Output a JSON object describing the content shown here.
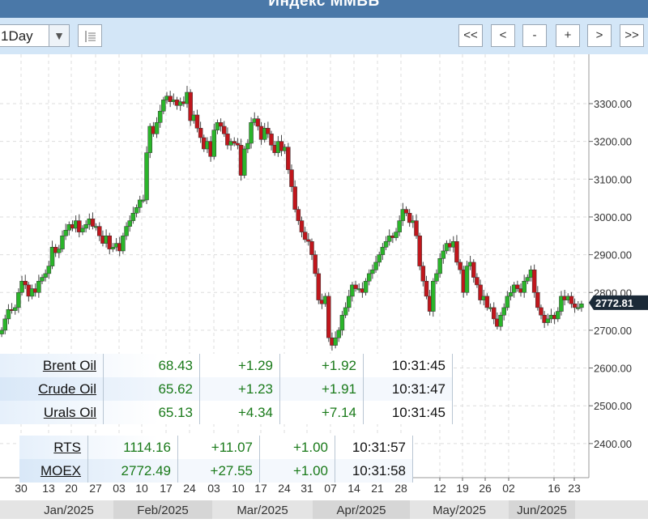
{
  "title": "Индекс ММВБ",
  "toolbar": {
    "period": "1Day",
    "list_icon": "list-icon",
    "nav": [
      "<<",
      "<",
      "-",
      "+",
      ">",
      ">>"
    ]
  },
  "colors": {
    "up": "#2ab52a",
    "down": "#c0161c",
    "header": "#4a78a8",
    "toolbar": "#d3e6f7",
    "price_tag": "#1b2a38"
  },
  "chart_data": {
    "type": "candlestick",
    "y_ticks": [
      "3300.00",
      "3200.00",
      "3100.00",
      "3000.00",
      "2900.00",
      "2800.00",
      "2700.00",
      "2600.00",
      "2500.00",
      "2400.00"
    ],
    "y_tick_values": [
      3300,
      3200,
      3100,
      3000,
      2900,
      2800,
      2700,
      2600,
      2500,
      2400
    ],
    "ylim": [
      2300,
      3380
    ],
    "last_price": "2772.81",
    "last_value": 2772.81,
    "x_ticks": [
      "30",
      "13",
      "20",
      "27",
      "03",
      "10",
      "17",
      "24",
      "03",
      "10",
      "17",
      "24",
      "31",
      "07",
      "14",
      "21",
      "28",
      "12",
      "19",
      "26",
      "02",
      "16",
      "23"
    ],
    "months": [
      "Jan/2025",
      "Feb/2025",
      "Mar/2025",
      "Apr/2025",
      "May/2025",
      "Jun/2025"
    ],
    "closes": [
      2700,
      2730,
      2755,
      2752,
      2760,
      2800,
      2830,
      2820,
      2790,
      2810,
      2800,
      2830,
      2840,
      2850,
      2870,
      2920,
      2905,
      2915,
      2950,
      2965,
      2980,
      2970,
      2990,
      2960,
      2970,
      2980,
      2995,
      2975,
      2975,
      2950,
      2930,
      2950,
      2915,
      2920,
      2930,
      2910,
      2950,
      2975,
      2990,
      3010,
      3025,
      3045,
      3045,
      3170,
      3240,
      3220,
      3250,
      3280,
      3310,
      3320,
      3305,
      3310,
      3295,
      3305,
      3300,
      3330,
      3255,
      3270,
      3235,
      3210,
      3180,
      3200,
      3160,
      3230,
      3250,
      3240,
      3220,
      3190,
      3200,
      3195,
      3190,
      3110,
      3180,
      3195,
      3250,
      3260,
      3240,
      3205,
      3235,
      3220,
      3190,
      3170,
      3200,
      3175,
      3185,
      3125,
      3080,
      3020,
      2990,
      2960,
      2940,
      2935,
      2900,
      2850,
      2780,
      2770,
      2790,
      2680,
      2660,
      2680,
      2700,
      2740,
      2760,
      2790,
      2820,
      2810,
      2810,
      2800,
      2830,
      2850,
      2860,
      2880,
      2900,
      2920,
      2935,
      2950,
      2945,
      2960,
      2990,
      3020,
      3010,
      2985,
      2990,
      2950,
      2870,
      2830,
      2790,
      2750,
      2830,
      2850,
      2890,
      2910,
      2930,
      2920,
      2935,
      2880,
      2860,
      2800,
      2870,
      2880,
      2840,
      2820,
      2780,
      2790,
      2760,
      2760,
      2730,
      2710,
      2740,
      2760,
      2790,
      2800,
      2820,
      2810,
      2800,
      2830,
      2840,
      2860,
      2800,
      2760,
      2740,
      2720,
      2730,
      2740,
      2730,
      2750,
      2790,
      2780,
      2790,
      2770,
      2760,
      2760,
      2770
    ],
    "quote_tables": [
      {
        "rows": [
          {
            "name": "Brent Oil",
            "value": "68.43",
            "chg": "+1.29",
            "pct": "+1.92",
            "time": "10:31:45"
          },
          {
            "name": "Crude Oil",
            "value": "65.62",
            "chg": "+1.23",
            "pct": "+1.91",
            "time": "10:31:47"
          },
          {
            "name": "Urals Oil",
            "value": "65.13",
            "chg": "+4.34",
            "pct": "+7.14",
            "time": "10:31:45"
          }
        ]
      },
      {
        "rows": [
          {
            "name": "RTS",
            "value": "1114.16",
            "chg": "+11.07",
            "pct": "+1.00",
            "time": "10:31:57"
          },
          {
            "name": "MOEX",
            "value": "2772.49",
            "chg": "+27.55",
            "pct": "+1.00",
            "time": "10:31:58"
          }
        ]
      }
    ]
  }
}
